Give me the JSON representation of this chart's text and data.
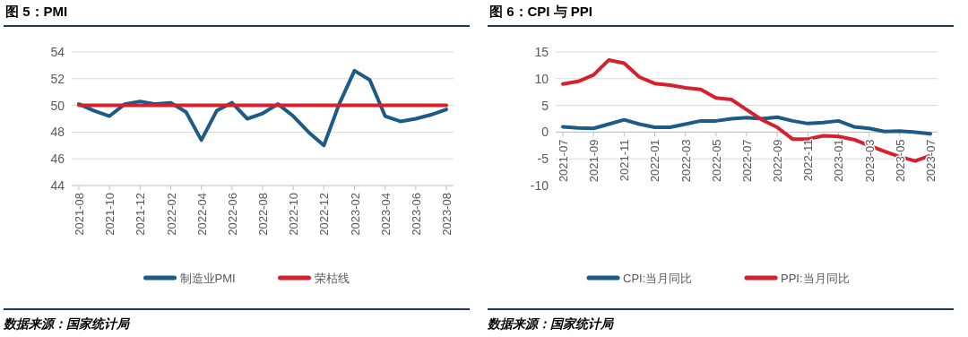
{
  "chart_data": [
    {
      "type": "line",
      "title": "图 5：PMI",
      "categories": [
        "2021-08",
        null,
        "2021-10",
        null,
        "2021-12",
        null,
        "2022-02",
        null,
        "2022-04",
        null,
        "2022-06",
        null,
        "2022-08",
        null,
        "2022-10",
        null,
        "2022-12",
        null,
        "2023-02",
        null,
        "2023-04",
        null,
        "2023-06",
        null,
        "2023-08"
      ],
      "series": [
        {
          "name": "制造业PMI",
          "color": "#1b5b86",
          "values": [
            50.1,
            49.6,
            49.2,
            50.1,
            50.3,
            50.1,
            50.2,
            49.5,
            47.4,
            49.6,
            50.2,
            49.0,
            49.4,
            50.1,
            49.2,
            48.0,
            47.0,
            50.1,
            52.6,
            51.9,
            49.2,
            48.8,
            49.0,
            49.3,
            49.7
          ]
        },
        {
          "name": "荣枯线",
          "color": "#d7202e",
          "values": [
            50,
            50,
            50,
            50,
            50,
            50,
            50,
            50,
            50,
            50,
            50,
            50,
            50,
            50,
            50,
            50,
            50,
            50,
            50,
            50,
            50,
            50,
            50,
            50,
            50
          ]
        }
      ],
      "ylim": [
        44,
        54
      ],
      "yticks": [
        44,
        46,
        48,
        50,
        52,
        54
      ],
      "grid": "y",
      "legend": "bottom",
      "annotations": [
        "数据来源：国家统计局"
      ]
    },
    {
      "type": "line",
      "title": "图 6：CPI 与 PPI",
      "categories": [
        "2021-07",
        null,
        "2021-09",
        null,
        "2021-11",
        null,
        "2022-01",
        null,
        "2022-03",
        null,
        "2022-05",
        null,
        "2022-07",
        null,
        "2022-09",
        null,
        "2022-11",
        null,
        "2023-01",
        null,
        "2023-03",
        null,
        "2023-05",
        null,
        "2023-07"
      ],
      "series": [
        {
          "name": "CPI:当月同比",
          "color": "#1b5b86",
          "values": [
            1.0,
            0.8,
            0.7,
            1.5,
            2.3,
            1.5,
            0.9,
            0.9,
            1.5,
            2.1,
            2.1,
            2.5,
            2.7,
            2.5,
            2.8,
            2.1,
            1.6,
            1.8,
            2.1,
            1.0,
            0.7,
            0.1,
            0.2,
            0.0,
            -0.3
          ]
        },
        {
          "name": "PPI:当月同比",
          "color": "#d7202e",
          "values": [
            9.0,
            9.5,
            10.7,
            13.5,
            12.9,
            10.3,
            9.1,
            8.8,
            8.3,
            8.0,
            6.4,
            6.1,
            4.2,
            2.3,
            0.9,
            -1.3,
            -1.3,
            -0.7,
            -0.8,
            -1.4,
            -2.5,
            -3.6,
            -4.6,
            -5.4,
            -4.4
          ]
        }
      ],
      "ylim": [
        -10,
        15
      ],
      "yticks": [
        -10,
        -5,
        0,
        5,
        10,
        15
      ],
      "grid": "y",
      "legend": "bottom",
      "annotations": [
        "数据来源：国家统计局"
      ]
    }
  ]
}
